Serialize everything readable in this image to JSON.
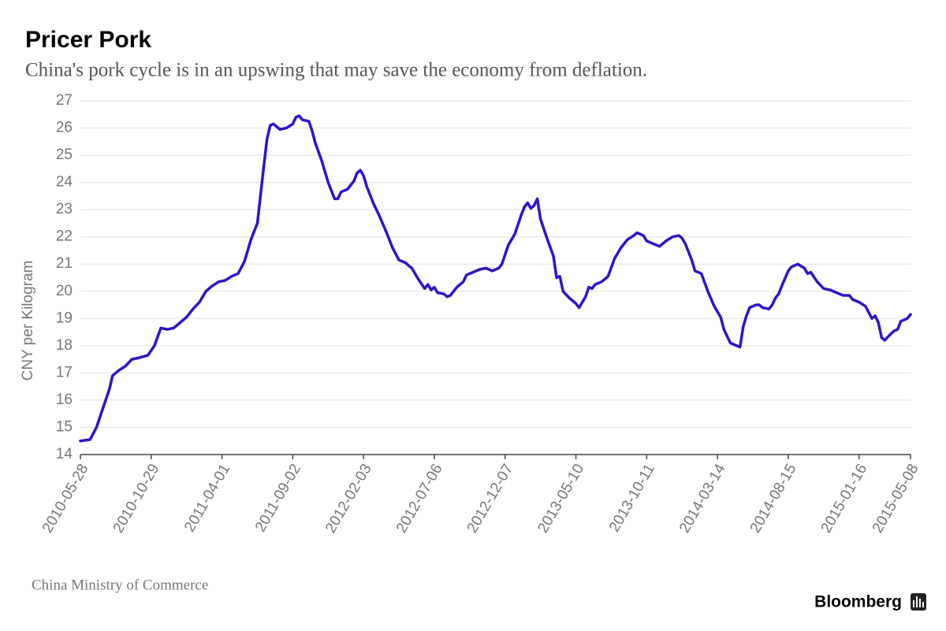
{
  "chart_data": {
    "type": "line",
    "title": "Pricer Pork",
    "subtitle": "China's pork cycle is in an upswing that may save the economy from deflation.",
    "y_label": "CNY per Kilogram",
    "source": "China Ministry of Commerce",
    "brand": "Bloomberg",
    "color": "#3311cc",
    "grid": true,
    "xlim": [
      "2010-05-28",
      "2015-05-08"
    ],
    "xticks": [
      "2010-05-28",
      "2010-10-29",
      "2011-04-01",
      "2011-09-02",
      "2012-02-03",
      "2012-07-06",
      "2012-12-07",
      "2013-05-10",
      "2013-10-11",
      "2014-03-14",
      "2014-08-15",
      "2015-01-16",
      "2015-05-08"
    ],
    "ylim": [
      14,
      27
    ],
    "yticks": [
      14,
      15,
      16,
      17,
      18,
      19,
      20,
      21,
      22,
      23,
      24,
      25,
      26,
      27
    ],
    "x": [
      "2010-05-28",
      "2010-06-18",
      "2010-07-02",
      "2010-07-16",
      "2010-07-30",
      "2010-08-06",
      "2010-08-20",
      "2010-09-03",
      "2010-09-17",
      "2010-10-01",
      "2010-10-22",
      "2010-11-05",
      "2010-11-19",
      "2010-12-03",
      "2010-12-17",
      "2010-12-31",
      "2011-01-14",
      "2011-01-28",
      "2011-02-11",
      "2011-02-25",
      "2011-03-11",
      "2011-03-25",
      "2011-04-08",
      "2011-04-22",
      "2011-05-06",
      "2011-05-20",
      "2011-06-03",
      "2011-06-17",
      "2011-07-01",
      "2011-07-08",
      "2011-07-15",
      "2011-07-22",
      "2011-08-05",
      "2011-08-19",
      "2011-09-02",
      "2011-09-09",
      "2011-09-16",
      "2011-09-23",
      "2011-10-07",
      "2011-10-14",
      "2011-10-21",
      "2011-11-04",
      "2011-11-18",
      "2011-12-02",
      "2011-12-09",
      "2011-12-16",
      "2011-12-30",
      "2012-01-13",
      "2012-01-20",
      "2012-01-27",
      "2012-02-03",
      "2012-02-10",
      "2012-02-24",
      "2012-03-09",
      "2012-03-23",
      "2012-04-06",
      "2012-04-20",
      "2012-05-04",
      "2012-05-18",
      "2012-06-01",
      "2012-06-15",
      "2012-06-22",
      "2012-06-29",
      "2012-07-06",
      "2012-07-13",
      "2012-07-27",
      "2012-08-03",
      "2012-08-10",
      "2012-08-24",
      "2012-09-07",
      "2012-09-14",
      "2012-09-28",
      "2012-10-12",
      "2012-10-26",
      "2012-11-09",
      "2012-11-23",
      "2012-11-30",
      "2012-12-14",
      "2012-12-28",
      "2013-01-11",
      "2013-01-18",
      "2013-01-25",
      "2013-02-01",
      "2013-02-08",
      "2013-02-15",
      "2013-02-22",
      "2013-03-08",
      "2013-03-22",
      "2013-03-29",
      "2013-04-05",
      "2013-04-12",
      "2013-04-26",
      "2013-05-10",
      "2013-05-17",
      "2013-05-31",
      "2013-06-07",
      "2013-06-14",
      "2013-06-21",
      "2013-07-05",
      "2013-07-19",
      "2013-08-02",
      "2013-08-16",
      "2013-08-30",
      "2013-09-13",
      "2013-09-20",
      "2013-10-04",
      "2013-10-11",
      "2013-10-25",
      "2013-11-08",
      "2013-11-22",
      "2013-12-06",
      "2013-12-20",
      "2013-12-27",
      "2014-01-03",
      "2014-01-17",
      "2014-01-24",
      "2014-02-07",
      "2014-02-21",
      "2014-03-07",
      "2014-03-21",
      "2014-03-28",
      "2014-04-11",
      "2014-04-25",
      "2014-05-02",
      "2014-05-09",
      "2014-05-16",
      "2014-05-23",
      "2014-06-06",
      "2014-06-13",
      "2014-06-20",
      "2014-07-04",
      "2014-07-11",
      "2014-07-18",
      "2014-07-25",
      "2014-08-01",
      "2014-08-15",
      "2014-08-22",
      "2014-09-05",
      "2014-09-19",
      "2014-09-26",
      "2014-10-03",
      "2014-10-17",
      "2014-10-31",
      "2014-11-14",
      "2014-11-28",
      "2014-12-12",
      "2014-12-26",
      "2015-01-02",
      "2015-01-16",
      "2015-01-30",
      "2015-02-13",
      "2015-02-20",
      "2015-02-27",
      "2015-03-06",
      "2015-03-13",
      "2015-03-27",
      "2015-04-03",
      "2015-04-10",
      "2015-04-17",
      "2015-05-01",
      "2015-05-08"
    ],
    "values": [
      14.5,
      14.55,
      15.0,
      15.7,
      16.4,
      16.9,
      17.1,
      17.25,
      17.5,
      17.55,
      17.65,
      18.0,
      18.65,
      18.6,
      18.65,
      18.85,
      19.05,
      19.35,
      19.6,
      20.0,
      20.2,
      20.35,
      20.4,
      20.55,
      20.65,
      21.1,
      21.9,
      22.5,
      24.6,
      25.6,
      26.1,
      26.15,
      25.95,
      26.0,
      26.15,
      26.4,
      26.45,
      26.3,
      26.25,
      25.9,
      25.45,
      24.8,
      24.0,
      23.4,
      23.4,
      23.65,
      23.75,
      24.05,
      24.35,
      24.45,
      24.25,
      23.85,
      23.25,
      22.75,
      22.2,
      21.6,
      21.15,
      21.05,
      20.85,
      20.45,
      20.1,
      20.25,
      20.05,
      20.15,
      19.95,
      19.9,
      19.8,
      19.85,
      20.15,
      20.35,
      20.6,
      20.7,
      20.8,
      20.85,
      20.75,
      20.85,
      21.0,
      21.7,
      22.1,
      22.8,
      23.1,
      23.25,
      23.05,
      23.15,
      23.4,
      22.65,
      21.95,
      21.3,
      20.5,
      20.55,
      20.0,
      19.75,
      19.55,
      19.4,
      19.8,
      20.15,
      20.1,
      20.25,
      20.35,
      20.55,
      21.2,
      21.6,
      21.9,
      22.05,
      22.15,
      22.05,
      21.85,
      21.75,
      21.65,
      21.85,
      22.0,
      22.05,
      21.95,
      21.75,
      21.15,
      20.75,
      20.65,
      20.0,
      19.45,
      19.05,
      18.6,
      18.1,
      18.0,
      17.95,
      18.7,
      19.1,
      19.4,
      19.5,
      19.5,
      19.4,
      19.35,
      19.5,
      19.75,
      19.9,
      20.2,
      20.75,
      20.9,
      21.0,
      20.85,
      20.65,
      20.7,
      20.35,
      20.1,
      20.05,
      19.95,
      19.85,
      19.85,
      19.7,
      19.6,
      19.45,
      19.0,
      19.1,
      18.85,
      18.3,
      18.2,
      18.45,
      18.55,
      18.6,
      18.9,
      19.0,
      19.15
    ]
  }
}
